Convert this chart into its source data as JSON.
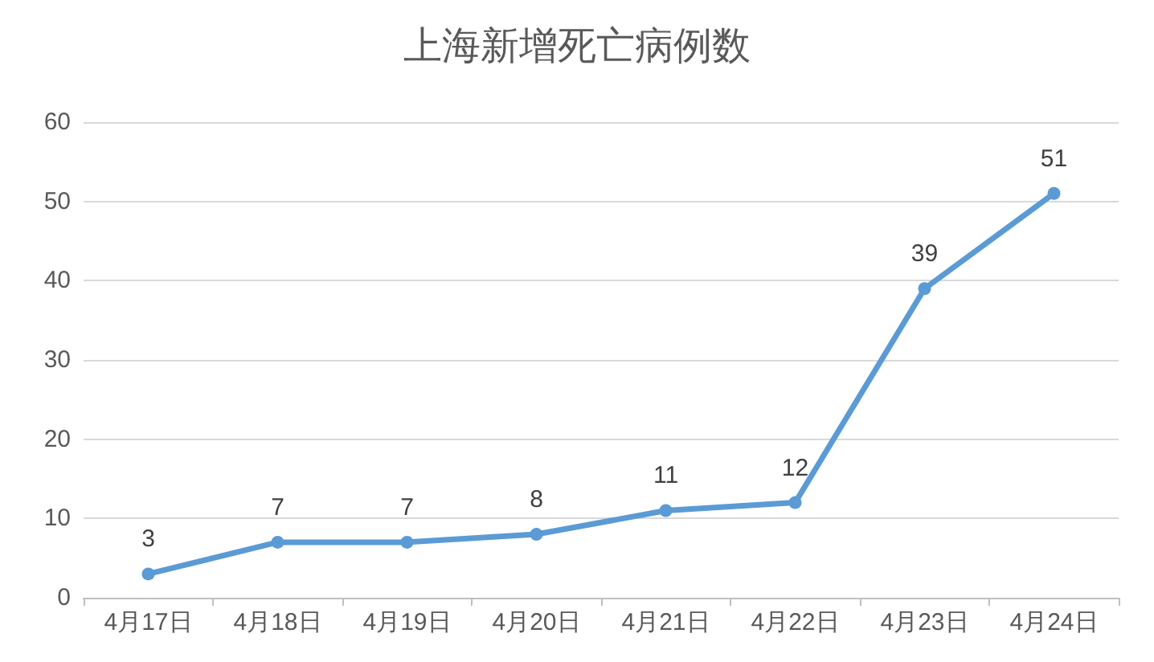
{
  "chart_data": {
    "type": "line",
    "title": "上海新增死亡病例数",
    "categories": [
      "4月17日",
      "4月18日",
      "4月19日",
      "4月20日",
      "4月21日",
      "4月22日",
      "4月23日",
      "4月24日"
    ],
    "series": [
      {
        "color": "#5b9bd5",
        "values": [
          3,
          7,
          7,
          8,
          11,
          12,
          39,
          51
        ]
      }
    ],
    "ylim": [
      0,
      60
    ],
    "yticks": [
      0,
      10,
      20,
      30,
      40,
      50,
      60
    ],
    "grid": "y",
    "marker": "circle",
    "line_style": "solid",
    "data_labels": true
  }
}
